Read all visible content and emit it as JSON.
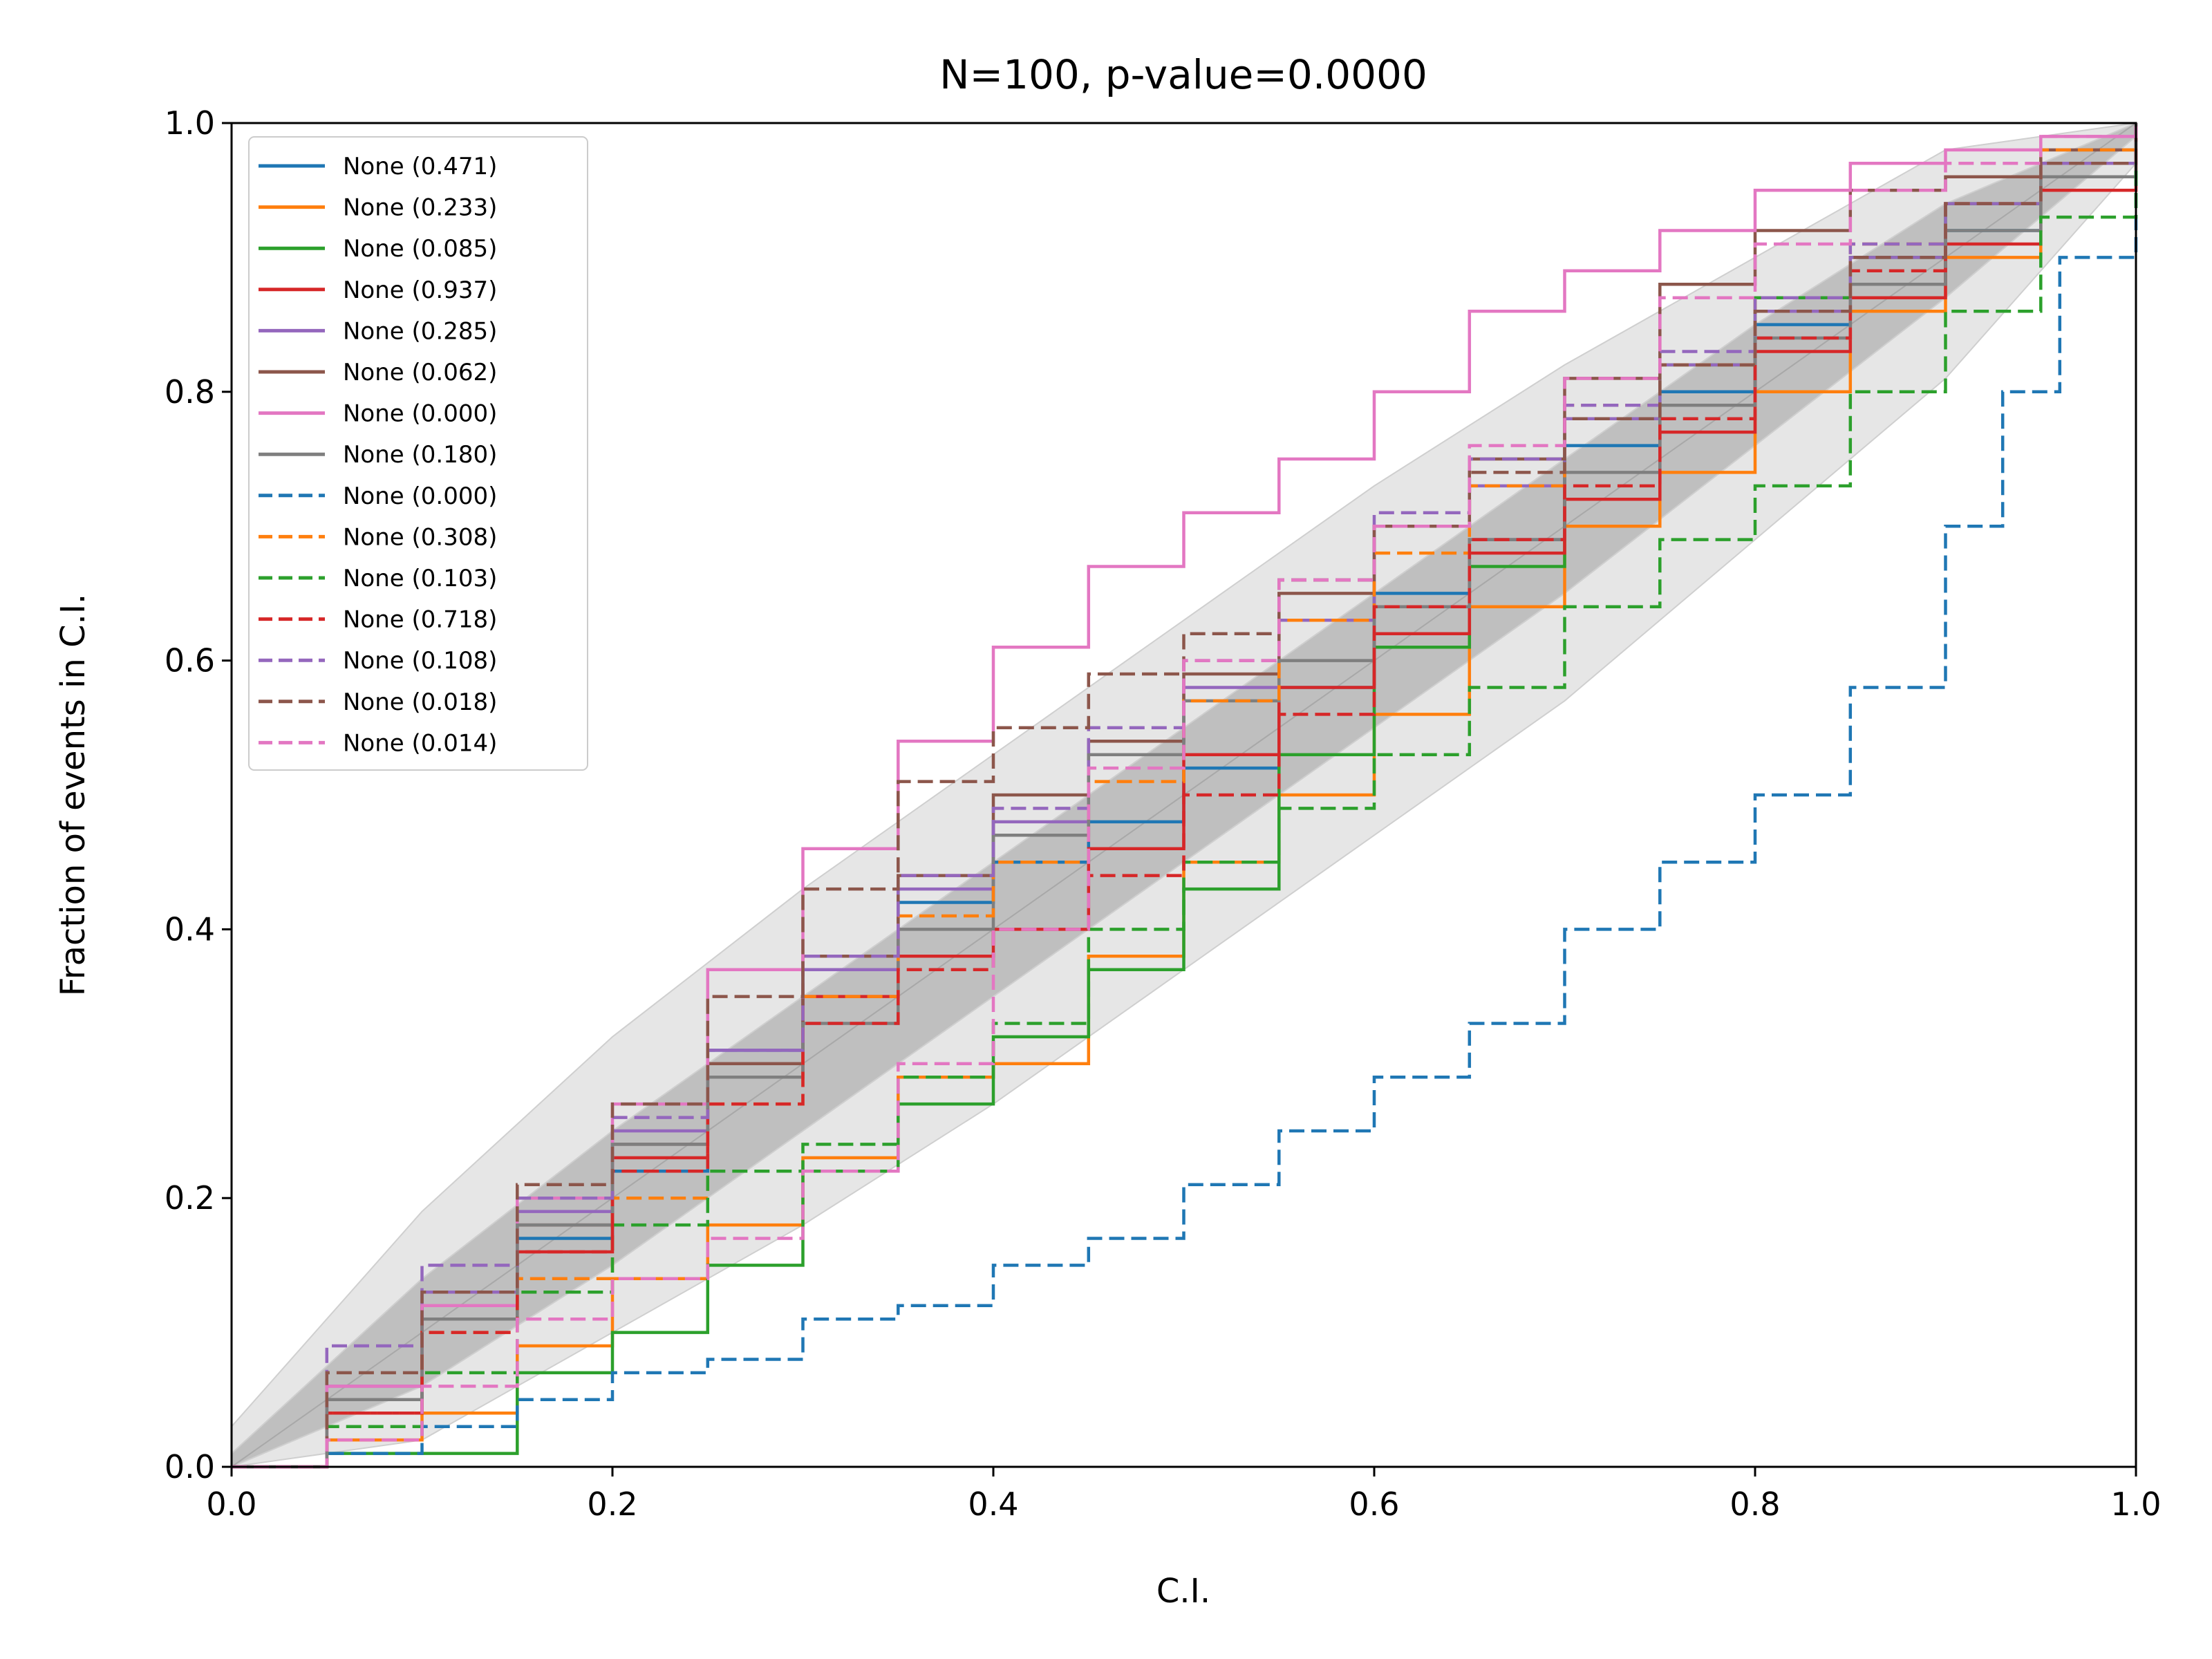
{
  "chart_data": {
    "type": "line",
    "title": "N=100, p-value=0.0000",
    "xlabel": "C.I.",
    "ylabel": "Fraction of events in C.I.",
    "xlim": [
      0,
      1
    ],
    "ylim": [
      0,
      1
    ],
    "xticks": [
      "0.0",
      "0.2",
      "0.4",
      "0.6",
      "0.8",
      "1.0"
    ],
    "yticks": [
      "0.0",
      "0.2",
      "0.4",
      "0.6",
      "0.8",
      "1.0"
    ],
    "grid": false,
    "legend_position": "upper-left",
    "bands": [
      {
        "level": "outer",
        "color": "#e6e6e6",
        "x": [
          0,
          0.1,
          0.2,
          0.3,
          0.4,
          0.5,
          0.6,
          0.7,
          0.8,
          0.9,
          1.0
        ],
        "lower": [
          0,
          0.02,
          0.1,
          0.18,
          0.27,
          0.37,
          0.47,
          0.57,
          0.69,
          0.81,
          0.97
        ],
        "upper": [
          0.03,
          0.19,
          0.32,
          0.43,
          0.53,
          0.63,
          0.73,
          0.82,
          0.9,
          0.98,
          1.0
        ]
      },
      {
        "level": "inner",
        "color": "#bfbfbf",
        "x": [
          0,
          0.1,
          0.2,
          0.3,
          0.4,
          0.5,
          0.6,
          0.7,
          0.8,
          0.9,
          1.0
        ],
        "lower": [
          0,
          0.06,
          0.15,
          0.25,
          0.35,
          0.45,
          0.55,
          0.65,
          0.76,
          0.87,
          0.99
        ],
        "upper": [
          0.01,
          0.14,
          0.25,
          0.35,
          0.45,
          0.55,
          0.65,
          0.75,
          0.85,
          0.94,
          1.0
        ]
      }
    ],
    "series": [
      {
        "name": "None (0.471)",
        "color": "#1f77b4",
        "dash": "solid",
        "x": [
          0,
          0.05,
          0.1,
          0.15,
          0.2,
          0.25,
          0.3,
          0.35,
          0.4,
          0.45,
          0.5,
          0.55,
          0.6,
          0.65,
          0.7,
          0.75,
          0.8,
          0.85,
          0.9,
          0.95,
          1.0
        ],
        "y": [
          0,
          0.05,
          0.12,
          0.17,
          0.22,
          0.31,
          0.37,
          0.42,
          0.45,
          0.48,
          0.52,
          0.58,
          0.65,
          0.69,
          0.76,
          0.8,
          0.85,
          0.88,
          0.92,
          0.96,
          1.0
        ]
      },
      {
        "name": "None (0.233)",
        "color": "#ff7f0e",
        "dash": "solid",
        "x": [
          0,
          0.05,
          0.1,
          0.15,
          0.2,
          0.25,
          0.3,
          0.35,
          0.4,
          0.45,
          0.5,
          0.55,
          0.6,
          0.65,
          0.7,
          0.75,
          0.8,
          0.85,
          0.9,
          0.95,
          1.0
        ],
        "y": [
          0,
          0.02,
          0.04,
          0.09,
          0.14,
          0.18,
          0.23,
          0.29,
          0.3,
          0.38,
          0.45,
          0.5,
          0.56,
          0.64,
          0.7,
          0.74,
          0.8,
          0.86,
          0.9,
          0.96,
          1.0
        ]
      },
      {
        "name": "None (0.085)",
        "color": "#2ca02c",
        "dash": "solid",
        "x": [
          0,
          0.05,
          0.1,
          0.15,
          0.2,
          0.25,
          0.3,
          0.35,
          0.4,
          0.45,
          0.5,
          0.55,
          0.6,
          0.65,
          0.7,
          0.75,
          0.8,
          0.85,
          0.9,
          0.95,
          1.0
        ],
        "y": [
          0,
          0.01,
          0.01,
          0.07,
          0.1,
          0.15,
          0.22,
          0.27,
          0.32,
          0.37,
          0.43,
          0.53,
          0.61,
          0.67,
          0.78,
          0.82,
          0.87,
          0.9,
          0.94,
          0.97,
          1.0
        ]
      },
      {
        "name": "None (0.937)",
        "color": "#d62728",
        "dash": "solid",
        "x": [
          0,
          0.05,
          0.1,
          0.15,
          0.2,
          0.25,
          0.3,
          0.35,
          0.4,
          0.45,
          0.5,
          0.55,
          0.6,
          0.65,
          0.7,
          0.75,
          0.8,
          0.85,
          0.9,
          0.95,
          1.0
        ],
        "y": [
          0,
          0.04,
          0.11,
          0.16,
          0.23,
          0.29,
          0.35,
          0.38,
          0.4,
          0.46,
          0.53,
          0.58,
          0.62,
          0.68,
          0.72,
          0.77,
          0.83,
          0.87,
          0.91,
          0.95,
          1.0
        ]
      },
      {
        "name": "None (0.285)",
        "color": "#9467bd",
        "dash": "solid",
        "x": [
          0,
          0.05,
          0.1,
          0.15,
          0.2,
          0.25,
          0.3,
          0.35,
          0.4,
          0.45,
          0.5,
          0.55,
          0.6,
          0.65,
          0.7,
          0.75,
          0.8,
          0.85,
          0.9,
          0.95,
          1.0
        ],
        "y": [
          0,
          0.06,
          0.13,
          0.19,
          0.25,
          0.31,
          0.37,
          0.43,
          0.48,
          0.53,
          0.58,
          0.63,
          0.7,
          0.73,
          0.78,
          0.82,
          0.86,
          0.9,
          0.94,
          0.97,
          1.0
        ]
      },
      {
        "name": "None (0.062)",
        "color": "#8c564b",
        "dash": "solid",
        "x": [
          0,
          0.05,
          0.1,
          0.15,
          0.2,
          0.25,
          0.3,
          0.35,
          0.4,
          0.45,
          0.5,
          0.55,
          0.6,
          0.65,
          0.7,
          0.75,
          0.8,
          0.85,
          0.9,
          0.95,
          1.0
        ],
        "y": [
          0,
          0.05,
          0.12,
          0.18,
          0.24,
          0.3,
          0.38,
          0.44,
          0.5,
          0.54,
          0.59,
          0.65,
          0.7,
          0.75,
          0.81,
          0.88,
          0.92,
          0.95,
          0.96,
          0.98,
          1.0
        ]
      },
      {
        "name": "None (0.000)",
        "color": "#e377c2",
        "dash": "solid",
        "x": [
          0,
          0.05,
          0.1,
          0.15,
          0.2,
          0.25,
          0.3,
          0.35,
          0.4,
          0.45,
          0.5,
          0.55,
          0.6,
          0.65,
          0.7,
          0.75,
          0.8,
          0.85,
          0.9,
          0.95,
          1.0
        ],
        "y": [
          0,
          0.06,
          0.12,
          0.2,
          0.27,
          0.37,
          0.46,
          0.54,
          0.61,
          0.67,
          0.71,
          0.75,
          0.8,
          0.86,
          0.89,
          0.92,
          0.95,
          0.97,
          0.98,
          0.99,
          1.0
        ]
      },
      {
        "name": "None (0.180)",
        "color": "#7f7f7f",
        "dash": "solid",
        "x": [
          0,
          0.05,
          0.1,
          0.15,
          0.2,
          0.25,
          0.3,
          0.35,
          0.4,
          0.45,
          0.5,
          0.55,
          0.6,
          0.65,
          0.7,
          0.75,
          0.8,
          0.85,
          0.9,
          0.95,
          1.0
        ],
        "y": [
          0,
          0.05,
          0.11,
          0.18,
          0.24,
          0.29,
          0.33,
          0.4,
          0.47,
          0.53,
          0.57,
          0.6,
          0.64,
          0.69,
          0.74,
          0.79,
          0.84,
          0.88,
          0.92,
          0.96,
          1.0
        ]
      },
      {
        "name": "None (0.000)",
        "color": "#1f77b4",
        "dash": "dashed",
        "x": [
          0,
          0.05,
          0.1,
          0.15,
          0.2,
          0.25,
          0.3,
          0.35,
          0.4,
          0.45,
          0.5,
          0.55,
          0.6,
          0.65,
          0.7,
          0.75,
          0.8,
          0.85,
          0.9,
          0.93,
          0.96,
          1.0
        ],
        "y": [
          0,
          0.01,
          0.03,
          0.05,
          0.07,
          0.08,
          0.11,
          0.12,
          0.15,
          0.17,
          0.21,
          0.25,
          0.29,
          0.33,
          0.4,
          0.45,
          0.5,
          0.58,
          0.7,
          0.8,
          0.9,
          1.0
        ]
      },
      {
        "name": "None (0.308)",
        "color": "#ff7f0e",
        "dash": "dashed",
        "x": [
          0,
          0.05,
          0.1,
          0.15,
          0.2,
          0.25,
          0.3,
          0.35,
          0.4,
          0.45,
          0.5,
          0.55,
          0.6,
          0.65,
          0.7,
          0.75,
          0.8,
          0.85,
          0.9,
          0.95,
          1.0
        ],
        "y": [
          0,
          0.04,
          0.1,
          0.14,
          0.2,
          0.27,
          0.35,
          0.41,
          0.45,
          0.51,
          0.57,
          0.63,
          0.68,
          0.73,
          0.79,
          0.82,
          0.87,
          0.91,
          0.94,
          0.98,
          1.0
        ]
      },
      {
        "name": "None (0.103)",
        "color": "#2ca02c",
        "dash": "dashed",
        "x": [
          0,
          0.05,
          0.1,
          0.15,
          0.2,
          0.25,
          0.3,
          0.35,
          0.4,
          0.45,
          0.5,
          0.55,
          0.6,
          0.65,
          0.7,
          0.75,
          0.8,
          0.85,
          0.9,
          0.95,
          1.0
        ],
        "y": [
          0,
          0.03,
          0.07,
          0.13,
          0.18,
          0.22,
          0.24,
          0.29,
          0.33,
          0.4,
          0.45,
          0.49,
          0.53,
          0.58,
          0.64,
          0.69,
          0.73,
          0.8,
          0.86,
          0.93,
          1.0
        ]
      },
      {
        "name": "None (0.718)",
        "color": "#d62728",
        "dash": "dashed",
        "x": [
          0,
          0.05,
          0.1,
          0.15,
          0.2,
          0.25,
          0.3,
          0.35,
          0.4,
          0.45,
          0.5,
          0.55,
          0.6,
          0.65,
          0.7,
          0.75,
          0.8,
          0.85,
          0.9,
          0.95,
          1.0
        ],
        "y": [
          0,
          0.04,
          0.1,
          0.16,
          0.22,
          0.27,
          0.33,
          0.37,
          0.4,
          0.44,
          0.5,
          0.56,
          0.64,
          0.69,
          0.73,
          0.78,
          0.84,
          0.89,
          0.94,
          0.97,
          1.0
        ]
      },
      {
        "name": "None (0.108)",
        "color": "#9467bd",
        "dash": "dashed",
        "x": [
          0,
          0.05,
          0.1,
          0.15,
          0.2,
          0.25,
          0.3,
          0.35,
          0.4,
          0.45,
          0.5,
          0.55,
          0.6,
          0.65,
          0.7,
          0.75,
          0.8,
          0.85,
          0.9,
          0.95,
          1.0
        ],
        "y": [
          0,
          0.09,
          0.15,
          0.2,
          0.26,
          0.31,
          0.38,
          0.44,
          0.49,
          0.55,
          0.6,
          0.66,
          0.71,
          0.75,
          0.79,
          0.83,
          0.87,
          0.91,
          0.94,
          0.97,
          1.0
        ]
      },
      {
        "name": "None (0.018)",
        "color": "#8c564b",
        "dash": "dashed",
        "x": [
          0,
          0.05,
          0.1,
          0.15,
          0.2,
          0.25,
          0.3,
          0.35,
          0.4,
          0.45,
          0.5,
          0.55,
          0.6,
          0.65,
          0.7,
          0.75,
          0.8,
          0.85,
          0.9,
          0.95,
          1.0
        ],
        "y": [
          0,
          0.07,
          0.13,
          0.21,
          0.27,
          0.35,
          0.43,
          0.51,
          0.55,
          0.59,
          0.62,
          0.66,
          0.7,
          0.74,
          0.78,
          0.82,
          0.86,
          0.9,
          0.94,
          0.97,
          1.0
        ]
      },
      {
        "name": "None (0.014)",
        "color": "#e377c2",
        "dash": "dashed",
        "x": [
          0,
          0.05,
          0.1,
          0.15,
          0.2,
          0.25,
          0.3,
          0.35,
          0.4,
          0.45,
          0.5,
          0.55,
          0.6,
          0.65,
          0.7,
          0.75,
          0.8,
          0.85,
          0.9,
          0.95,
          1.0
        ],
        "y": [
          0,
          0.02,
          0.06,
          0.11,
          0.14,
          0.17,
          0.22,
          0.3,
          0.4,
          0.52,
          0.6,
          0.66,
          0.7,
          0.76,
          0.81,
          0.87,
          0.91,
          0.95,
          0.97,
          0.99,
          1.0
        ]
      }
    ]
  }
}
